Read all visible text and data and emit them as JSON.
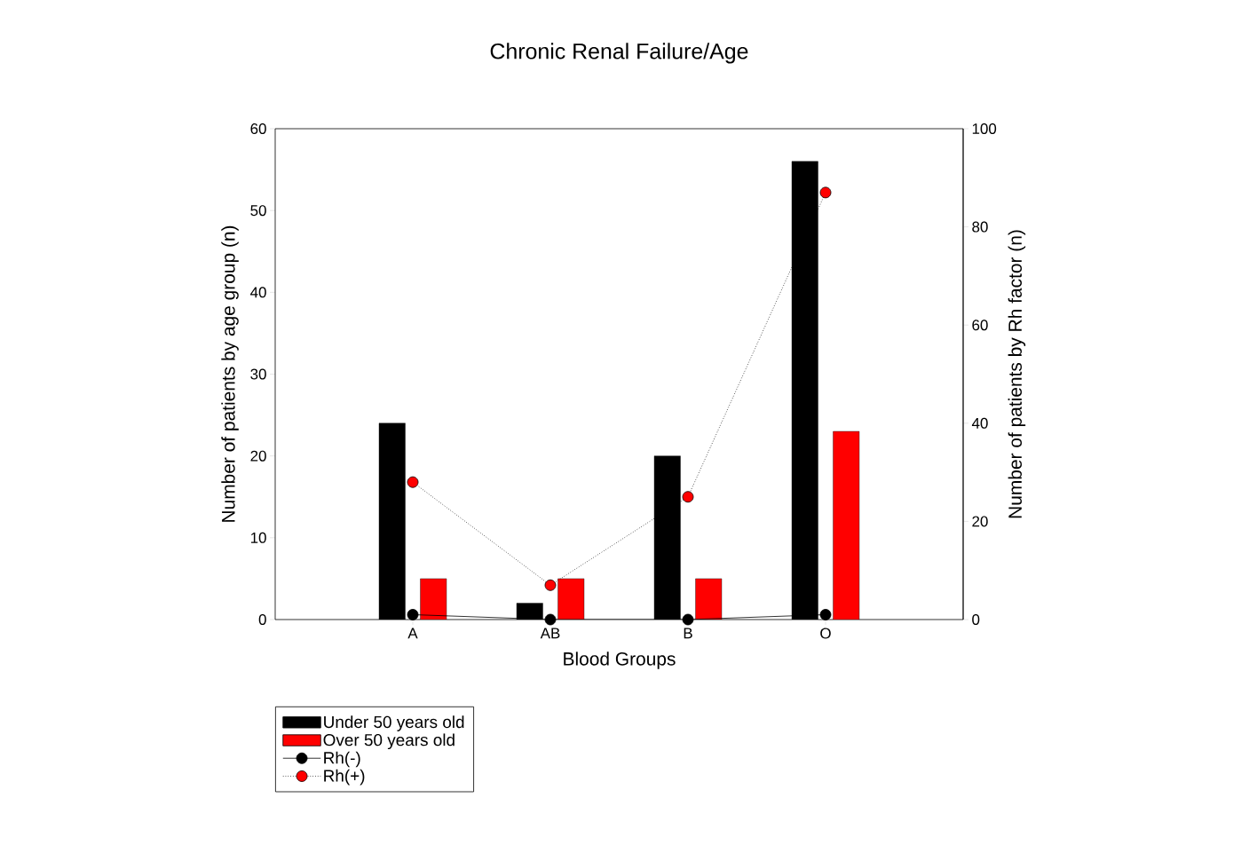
{
  "chart_data": {
    "type": "bar",
    "title": "Chronic Renal Failure/Age",
    "xlabel": "Blood Groups",
    "ylabel": "Number of patients by age group (n)",
    "y2label": "Number of patients by Rh factor (n)",
    "categories": [
      "A",
      "AB",
      "B",
      "O"
    ],
    "series": [
      {
        "name": "Under 50 years old",
        "color": "#000000",
        "values": [
          24,
          2,
          20,
          56
        ]
      },
      {
        "name": "Over 50 years old",
        "color": "#ff0000",
        "values": [
          5,
          5,
          5,
          23
        ]
      },
      {
        "name": "Rh(-)",
        "type": "line",
        "axis": "y2",
        "color": "#000000",
        "marker": "circle",
        "line_style": "solid",
        "values": [
          1,
          0,
          0,
          1
        ]
      },
      {
        "name": "Rh(+)",
        "type": "line",
        "axis": "y2",
        "color": "#ff0000",
        "marker": "circle",
        "line_style": "dotted",
        "values": [
          28,
          7,
          25,
          87
        ]
      }
    ],
    "ylim": [
      0,
      60
    ],
    "yticks": [
      0,
      10,
      20,
      30,
      40,
      50,
      60
    ],
    "y2lim": [
      0,
      100
    ],
    "y2ticks": [
      0,
      20,
      40,
      60,
      80,
      100
    ],
    "legend": "bottom left"
  }
}
